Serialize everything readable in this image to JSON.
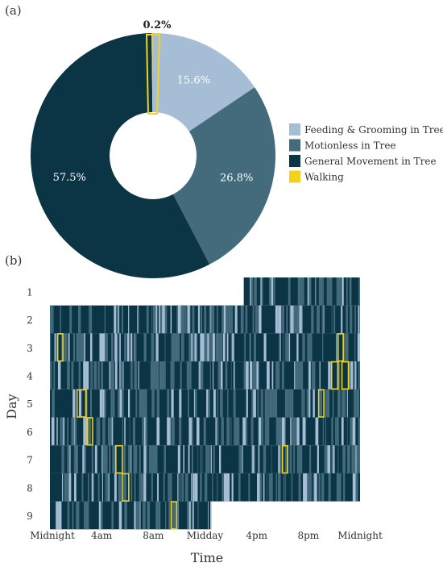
{
  "chart_data": [
    {
      "type": "pie",
      "panel_label": "(a)",
      "donut": true,
      "slices": [
        {
          "name": "Feeding & Grooming in Tree",
          "value": 15.6,
          "label": "15.6%",
          "color": "#a6bdd6"
        },
        {
          "name": "Motionless in Tree",
          "value": 26.8,
          "label": "26.8%",
          "color": "#436b7c"
        },
        {
          "name": "General Movement in Tree",
          "value": 57.5,
          "label": "57.5%",
          "color": "#0b3545"
        },
        {
          "name": "Walking",
          "value": 0.2,
          "label": "0.2%",
          "color": "#f2d21b"
        }
      ],
      "legend": {
        "placement": "right",
        "entries": [
          {
            "label": "Feeding & Grooming in Tree",
            "color": "#a6bdd6"
          },
          {
            "label": "Motionless in Tree",
            "color": "#436b7c"
          },
          {
            "label": "General Movement in Tree",
            "color": "#0b3545"
          },
          {
            "label": "Walking",
            "color": "#f2d21b"
          }
        ]
      }
    },
    {
      "type": "heatmap",
      "panel_label": "(b)",
      "xlabel": "Time",
      "ylabel": "Day",
      "x_ticks": [
        "Midnight",
        "4am",
        "8am",
        "Midday",
        "4pm",
        "8pm",
        "Midnight"
      ],
      "x_range_hours": [
        0,
        24
      ],
      "days": [
        "1",
        "2",
        "3",
        "4",
        "5",
        "6",
        "7",
        "8",
        "9"
      ],
      "day_spans_hours": [
        [
          15.0,
          24.0
        ],
        [
          0,
          24
        ],
        [
          0,
          24
        ],
        [
          0,
          24
        ],
        [
          0,
          24
        ],
        [
          0,
          24
        ],
        [
          0,
          24
        ],
        [
          0,
          24
        ],
        [
          0,
          12.5
        ]
      ],
      "category_colors": {
        "feeding_grooming": "#a6bdd6",
        "motionless": "#436b7c",
        "general_movement": "#0b3545",
        "walking_box": "#f2d21b"
      },
      "walking_bouts": [
        {
          "day": "3",
          "start_hour": 0.6,
          "end_hour": 1.0
        },
        {
          "day": "3",
          "start_hour": 22.3,
          "end_hour": 22.7
        },
        {
          "day": "4",
          "start_hour": 21.8,
          "end_hour": 22.3
        },
        {
          "day": "4",
          "start_hour": 22.6,
          "end_hour": 23.1
        },
        {
          "day": "5",
          "start_hour": 2.1,
          "end_hour": 2.8
        },
        {
          "day": "5",
          "start_hour": 20.8,
          "end_hour": 21.2
        },
        {
          "day": "6",
          "start_hour": 2.9,
          "end_hour": 3.3
        },
        {
          "day": "7",
          "start_hour": 5.1,
          "end_hour": 5.6
        },
        {
          "day": "7",
          "start_hour": 18.0,
          "end_hour": 18.4
        },
        {
          "day": "8",
          "start_hour": 5.6,
          "end_hour": 6.1
        },
        {
          "day": "9",
          "start_hour": 9.4,
          "end_hour": 9.8
        }
      ]
    }
  ]
}
